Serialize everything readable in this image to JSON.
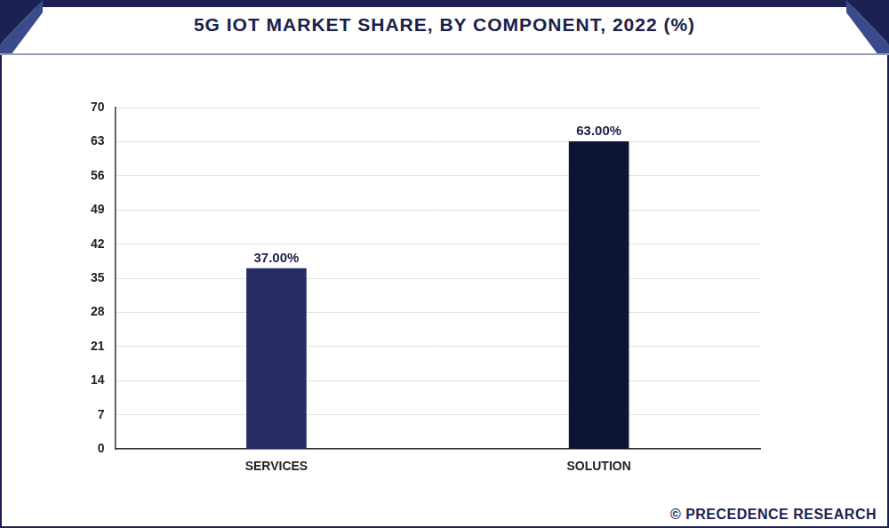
{
  "chart_data": {
    "type": "bar",
    "title": "5G IOT MARKET SHARE, BY COMPONENT, 2022 (%)",
    "categories": [
      "SERVICES",
      "SOLUTION"
    ],
    "values": [
      37,
      63
    ],
    "value_labels": [
      "37.00%",
      "63.00%"
    ],
    "colors": [
      "#252d62",
      "#0c1633"
    ],
    "ylim": [
      0,
      70
    ],
    "yticks": [
      0,
      7,
      14,
      21,
      28,
      35,
      42,
      49,
      56,
      63,
      70
    ],
    "grid": true,
    "data_labels": true,
    "source": "© PRECEDENCE RESEARCH"
  }
}
